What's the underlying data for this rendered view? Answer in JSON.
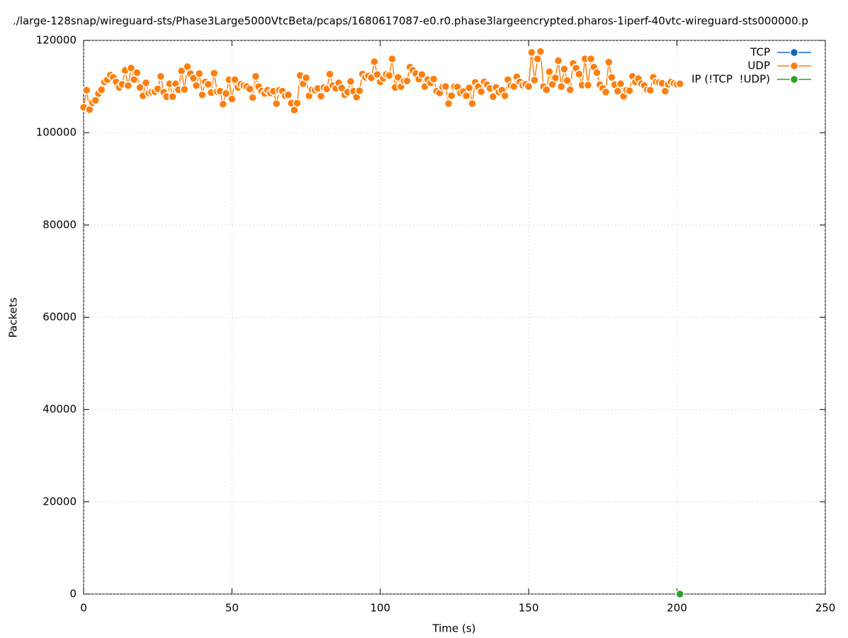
{
  "chart_data": {
    "type": "line",
    "title": "./large-128snap/wireguard-sts/Phase3Large5000VtcBeta/pcaps/1680617087-e0.r0.phase3largeencrypted.pharos-1iperf-40vtc-wireguard-sts000000.p",
    "xlabel": "Time (s)",
    "ylabel": "Packets",
    "xlim": [
      0,
      250
    ],
    "xticks": [
      0,
      50,
      100,
      150,
      200,
      250
    ],
    "ylim": [
      0,
      120000
    ],
    "yticks": [
      0,
      20000,
      40000,
      60000,
      80000,
      100000,
      120000
    ],
    "grid": true,
    "legend": "top right",
    "series": [
      {
        "name": "TCP",
        "color": "#1565b8",
        "x": [],
        "values": []
      },
      {
        "name": "UDP",
        "color": "#ff7f0e",
        "x": [
          0,
          1,
          2,
          3,
          4,
          5,
          6,
          7,
          8,
          9,
          10,
          11,
          12,
          13,
          14,
          15,
          16,
          17,
          18,
          19,
          20,
          21,
          22,
          23,
          24,
          25,
          26,
          27,
          28,
          29,
          30,
          31,
          32,
          33,
          34,
          35,
          36,
          37,
          38,
          39,
          40,
          41,
          42,
          43,
          44,
          45,
          46,
          47,
          48,
          49,
          50,
          51,
          52,
          53,
          54,
          55,
          56,
          57,
          58,
          59,
          60,
          61,
          62,
          63,
          64,
          65,
          66,
          67,
          68,
          69,
          70,
          71,
          72,
          73,
          74,
          75,
          76,
          77,
          78,
          79,
          80,
          81,
          82,
          83,
          84,
          85,
          86,
          87,
          88,
          89,
          90,
          91,
          92,
          93,
          94,
          95,
          96,
          97,
          98,
          99,
          100,
          101,
          102,
          103,
          104,
          105,
          106,
          107,
          108,
          109,
          110,
          111,
          112,
          113,
          114,
          115,
          116,
          117,
          118,
          119,
          120,
          121,
          122,
          123,
          124,
          125,
          126,
          127,
          128,
          129,
          130,
          131,
          132,
          133,
          134,
          135,
          136,
          137,
          138,
          139,
          140,
          141,
          142,
          143,
          144,
          145,
          146,
          147,
          148,
          149,
          150,
          151,
          152,
          153,
          154,
          155,
          156,
          157,
          158,
          159,
          160,
          161,
          162,
          163,
          164,
          165,
          166,
          167,
          168,
          169,
          170,
          171,
          172,
          173,
          174,
          175,
          176,
          177,
          178,
          179,
          180,
          181,
          182,
          183,
          184,
          185,
          186,
          187,
          188,
          189,
          190,
          191,
          192,
          193,
          194,
          195,
          196,
          197,
          198,
          199,
          200,
          201
        ],
        "values": [
          105500,
          109200,
          105000,
          106500,
          107000,
          108500,
          109300,
          111000,
          111500,
          112500,
          112000,
          111000,
          109800,
          110500,
          113500,
          110200,
          114000,
          111500,
          113000,
          109800,
          108000,
          110800,
          108600,
          108800,
          108900,
          109500,
          112200,
          108800,
          107800,
          110600,
          107800,
          110600,
          109300,
          113400,
          109400,
          114300,
          112800,
          111800,
          110200,
          112800,
          108200,
          111000,
          110500,
          108700,
          112900,
          108900,
          109000,
          106200,
          108500,
          111500,
          107300,
          111500,
          109800,
          110500,
          110200,
          110000,
          109500,
          107600,
          112200,
          110000,
          109000,
          108500,
          109200,
          108600,
          109000,
          106300,
          109200,
          109000,
          108000,
          108200,
          106400,
          104900,
          106400,
          112400,
          110600,
          111900,
          108000,
          109300,
          109200,
          109600,
          107900,
          109800,
          109500,
          112700,
          110200,
          109600,
          110800,
          109700,
          108200,
          108800,
          111100,
          109000,
          107700,
          109100,
          112700,
          112000,
          112300,
          111900,
          115400,
          112600,
          111000,
          111800,
          112600,
          112400,
          116000,
          109800,
          112000,
          110000,
          111200,
          111200,
          114200,
          113500,
          112800,
          111600,
          112600,
          110000,
          111500,
          110800,
          111600,
          109000,
          108600,
          109900,
          110000,
          106300,
          108000,
          110000,
          109900,
          108600,
          108900,
          108000,
          109700,
          106300,
          110900,
          110000,
          108900,
          111000,
          110400,
          109600,
          107800,
          109800,
          108800,
          109200,
          108000,
          111500,
          110200,
          110000,
          112100,
          111000,
          110300,
          110500,
          110000,
          117400,
          111400,
          116000,
          117600,
          110000,
          109300,
          113200,
          110500,
          111900,
          115600,
          110000,
          113800,
          111300,
          109300,
          115000,
          114000,
          112700,
          110300,
          116000,
          110300,
          116000,
          114200,
          113000,
          110400,
          109600,
          108800,
          115300,
          112000,
          110400,
          109000,
          110600,
          107900,
          109200,
          109100,
          112200,
          111000,
          111700,
          110600,
          110200,
          109300,
          109200,
          112000,
          111000,
          110900,
          110700,
          109000,
          110500,
          111000,
          110700,
          110500,
          110600
        ]
      },
      {
        "name": "IP (!TCP  !UDP)",
        "color": "#2ca02c",
        "x": [
          201
        ],
        "values": [
          0
        ]
      }
    ]
  }
}
